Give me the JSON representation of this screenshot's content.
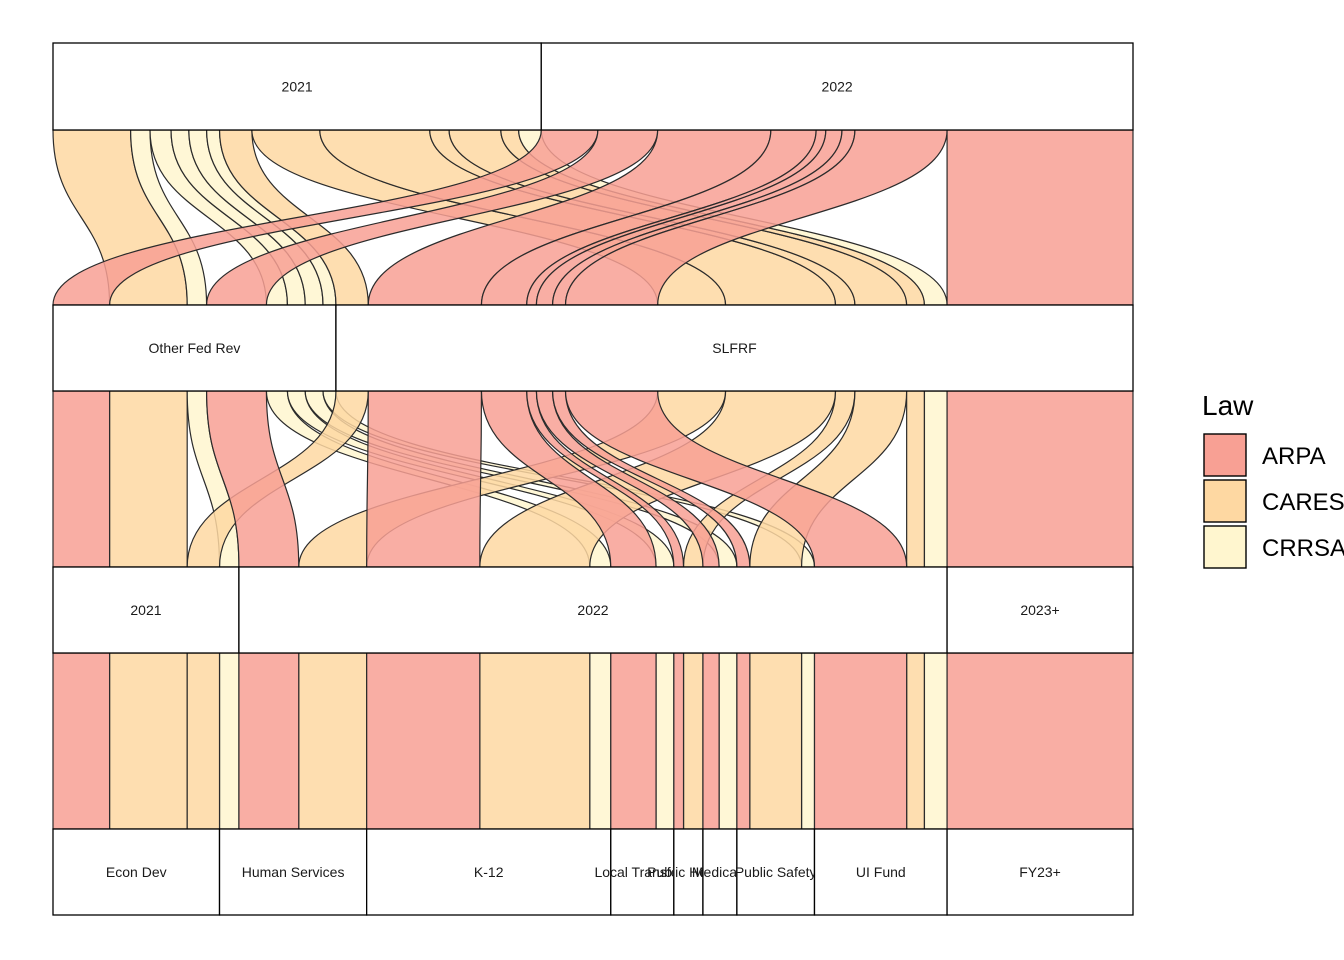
{
  "colors": {
    "ARPA": "#f8a094",
    "CARES": "#fed8a2",
    "CRRSA": "#fff6cf"
  },
  "legend": {
    "title": "Law",
    "items": [
      "ARPA",
      "CARES",
      "CRRSA"
    ]
  },
  "chart_data": {
    "type": "alluvial",
    "axes": [
      {
        "name": "",
        "strata": [
          "2021",
          "2022"
        ]
      },
      {
        "name": "",
        "strata": [
          "Other Fed Rev",
          "SLFRF"
        ]
      },
      {
        "name": "",
        "strata": [
          "2021",
          "2022",
          "2023+"
        ]
      },
      {
        "name": "",
        "strata": [
          "Econ Dev",
          "Human Services",
          "K-12",
          "Local Transfers",
          "Public Health",
          "Medicaid",
          "Public Safety",
          "UI Fund",
          "FY23+"
        ]
      }
    ],
    "fill_variable": "Law",
    "flows": [
      {
        "law": "CARES",
        "path": [
          "2021",
          "Other Fed Rev",
          "2021",
          "Econ Dev"
        ],
        "value": 4.8
      },
      {
        "law": "CRRSA",
        "path": [
          "2021",
          "Other Fed Rev",
          "2021",
          "Human Services"
        ],
        "value": 1.2
      },
      {
        "law": "CRRSA",
        "path": [
          "2021",
          "Other Fed Rev",
          "2022",
          "K-12"
        ],
        "value": 1.3
      },
      {
        "law": "CRRSA",
        "path": [
          "2021",
          "Other Fed Rev",
          "2022",
          "Local Transfers"
        ],
        "value": 1.1
      },
      {
        "law": "CRRSA",
        "path": [
          "2021",
          "Other Fed Rev",
          "2022",
          "Medicaid"
        ],
        "value": 1.1
      },
      {
        "law": "CRRSA",
        "path": [
          "2021",
          "Other Fed Rev",
          "2022",
          "Public Safety"
        ],
        "value": 0.8
      },
      {
        "law": "CARES",
        "path": [
          "2021",
          "SLFRF",
          "2021",
          "Econ Dev"
        ],
        "value": 2.0
      },
      {
        "law": "CARES",
        "path": [
          "2021",
          "SLFRF",
          "2022",
          "Human Services"
        ],
        "value": 4.2
      },
      {
        "law": "CARES",
        "path": [
          "2021",
          "SLFRF",
          "2022",
          "K-12"
        ],
        "value": 6.8
      },
      {
        "law": "CARES",
        "path": [
          "2021",
          "SLFRF",
          "2022",
          "Public Health"
        ],
        "value": 1.2
      },
      {
        "law": "CARES",
        "path": [
          "2021",
          "SLFRF",
          "2022",
          "Public Safety"
        ],
        "value": 3.2
      },
      {
        "law": "CARES",
        "path": [
          "2021",
          "SLFRF",
          "2022",
          "UI Fund"
        ],
        "value": 1.1
      },
      {
        "law": "CRRSA",
        "path": [
          "2021",
          "SLFRF",
          "2022",
          "UI Fund"
        ],
        "value": 1.4
      },
      {
        "law": "ARPA",
        "path": [
          "2022",
          "Other Fed Rev",
          "2021",
          "Econ Dev"
        ],
        "value": 3.5
      },
      {
        "law": "ARPA",
        "path": [
          "2022",
          "Other Fed Rev",
          "2022",
          "Human Services"
        ],
        "value": 3.7
      },
      {
        "law": "ARPA",
        "path": [
          "2022",
          "SLFRF",
          "2022",
          "K-12"
        ],
        "value": 7.0
      },
      {
        "law": "ARPA",
        "path": [
          "2022",
          "SLFRF",
          "2022",
          "Local Transfers"
        ],
        "value": 2.8
      },
      {
        "law": "ARPA",
        "path": [
          "2022",
          "SLFRF",
          "2022",
          "Public Health"
        ],
        "value": 0.6
      },
      {
        "law": "ARPA",
        "path": [
          "2022",
          "SLFRF",
          "2022",
          "Medicaid"
        ],
        "value": 1.0
      },
      {
        "law": "ARPA",
        "path": [
          "2022",
          "SLFRF",
          "2022",
          "Public Safety"
        ],
        "value": 0.8
      },
      {
        "law": "ARPA",
        "path": [
          "2022",
          "SLFRF",
          "2022",
          "UI Fund"
        ],
        "value": 5.7
      },
      {
        "law": "ARPA",
        "path": [
          "2022",
          "SLFRF",
          "2023+",
          "FY23+"
        ],
        "value": 11.5
      }
    ]
  }
}
